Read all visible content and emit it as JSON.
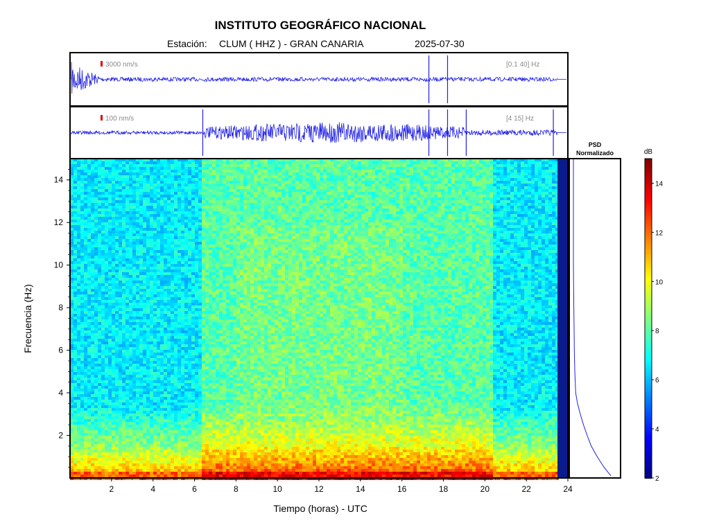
{
  "header": {
    "title": "INSTITUTO GEOGRÁFICO NACIONAL",
    "station_label": "Estación:",
    "station": "CLUM ( HHZ ) - GRAN CANARIA",
    "date": "2025-07-30"
  },
  "chart_data": [
    {
      "type": "line",
      "panel": "seismogram-broadband",
      "scale_label": "3000 nm/s",
      "filter_label": "[0.1 40] Hz",
      "xlim": [
        0,
        24
      ],
      "series_color": "#1f1fe6",
      "events_hours": [
        17.3,
        18.2
      ]
    },
    {
      "type": "line",
      "panel": "seismogram-filtered",
      "scale_label": "100 nm/s",
      "filter_label": "[4 15] Hz",
      "xlim": [
        0,
        24
      ],
      "series_color": "#1f1fe6",
      "events_hours": [
        6.4,
        17.3,
        18.2,
        19.1,
        23.3
      ]
    },
    {
      "type": "heatmap",
      "panel": "spectrogram",
      "xlabel": "Tiempo (horas) - UTC",
      "ylabel": "Frecuencia  (Hz)",
      "xlim": [
        0,
        24
      ],
      "ylim": [
        0,
        15
      ],
      "xticks": [
        2,
        4,
        6,
        8,
        10,
        12,
        14,
        16,
        18,
        20,
        22,
        24
      ],
      "yticks": [
        2,
        4,
        6,
        8,
        10,
        12,
        14
      ],
      "colormap": "jet"
    },
    {
      "type": "line",
      "panel": "psd",
      "title_lines": [
        "PSD",
        "Normalizado"
      ],
      "freq_hz": [
        0.1,
        0.5,
        1,
        1.5,
        2,
        2.5,
        3,
        3.5,
        4,
        5,
        6,
        7,
        8,
        9,
        10,
        11,
        12,
        13,
        14,
        15
      ],
      "psd_norm": [
        0.85,
        0.7,
        0.55,
        0.42,
        0.33,
        0.25,
        0.18,
        0.12,
        0.08,
        0.06,
        0.05,
        0.045,
        0.04,
        0.035,
        0.03,
        0.03,
        0.03,
        0.03,
        0.03,
        0.03
      ]
    },
    {
      "type": "heatmap",
      "panel": "colorbar",
      "unit": "dB",
      "range": [
        2,
        15
      ],
      "ticks": [
        2,
        4,
        6,
        8,
        10,
        12,
        14
      ]
    }
  ]
}
